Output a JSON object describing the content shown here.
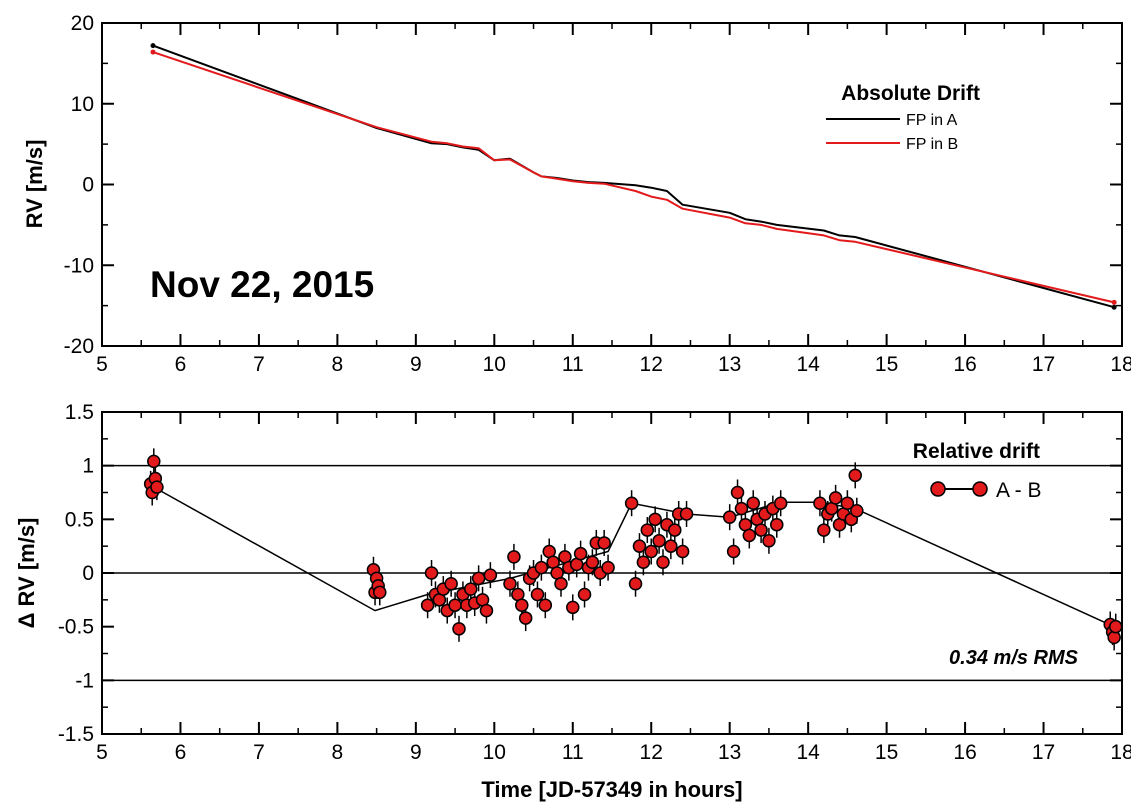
{
  "chart_data": [
    {
      "type": "line",
      "title": "",
      "xlabel": "",
      "ylabel": "RV [m/s]",
      "xlim": [
        5,
        18
      ],
      "ylim": [
        -20,
        20
      ],
      "x_ticks": [
        5,
        6,
        7,
        8,
        9,
        10,
        11,
        12,
        13,
        14,
        15,
        16,
        17,
        18
      ],
      "y_ticks": [
        -20,
        -10,
        0,
        10,
        20
      ],
      "legend_title": "Absolute Drift",
      "legend_position": "top-right",
      "annotation": "Nov 22, 2015",
      "grid": false,
      "series": [
        {
          "name": "FP in A",
          "color": "#000000",
          "x": [
            5.65,
            8.5,
            9.2,
            9.4,
            9.6,
            9.8,
            10.0,
            10.2,
            10.5,
            10.6,
            10.8,
            11.0,
            11.2,
            11.4,
            11.8,
            12.0,
            12.2,
            12.4,
            13.0,
            13.2,
            13.4,
            13.6,
            14.2,
            14.4,
            14.6,
            17.9
          ],
          "y": [
            17.2,
            7.0,
            5.1,
            5.0,
            4.6,
            4.3,
            3.0,
            3.2,
            1.5,
            1.0,
            0.8,
            0.5,
            0.3,
            0.2,
            -0.1,
            -0.4,
            -0.8,
            -2.5,
            -3.5,
            -4.3,
            -4.6,
            -5.0,
            -5.7,
            -6.3,
            -6.5,
            -15.2
          ]
        },
        {
          "name": "FP in B",
          "color": "#e31a1c",
          "x": [
            5.65,
            8.5,
            9.2,
            9.4,
            9.6,
            9.8,
            10.0,
            10.2,
            10.5,
            10.6,
            10.8,
            11.0,
            11.2,
            11.4,
            11.8,
            12.0,
            12.2,
            12.4,
            13.0,
            13.2,
            13.4,
            13.6,
            14.2,
            14.4,
            14.6,
            17.9
          ],
          "y": [
            16.4,
            7.1,
            5.3,
            5.1,
            4.7,
            4.5,
            3.0,
            3.1,
            1.5,
            1.0,
            0.7,
            0.4,
            0.2,
            0.1,
            -0.8,
            -1.5,
            -1.9,
            -3.0,
            -4.1,
            -4.8,
            -5.0,
            -5.5,
            -6.3,
            -6.9,
            -7.1,
            -14.6
          ]
        }
      ]
    },
    {
      "type": "scatter",
      "title": "",
      "xlabel": "Time [JD-57349 in hours]",
      "ylabel": "Δ RV [m/s]",
      "xlim": [
        5,
        18
      ],
      "ylim": [
        -1.5,
        1.5
      ],
      "x_ticks": [
        5,
        6,
        7,
        8,
        9,
        10,
        11,
        12,
        13,
        14,
        15,
        16,
        17,
        18
      ],
      "y_ticks": [
        -1.5,
        -1,
        -0.5,
        0,
        0.5,
        1,
        1.5
      ],
      "y_tick_labels": [
        "-1.5",
        "-1",
        "-0.5",
        "0",
        "0.5",
        "1",
        "1.5"
      ],
      "hlines": [
        -1,
        0,
        1
      ],
      "legend_title": "Relative drift",
      "legend_position": "top-right",
      "annotation": "0.34 m/s RMS",
      "grid": false,
      "series": [
        {
          "name": "A - B",
          "color": "#e31a1c",
          "x": [
            5.62,
            5.64,
            5.66,
            5.68,
            5.7,
            8.46,
            8.48,
            8.5,
            8.52,
            8.54,
            9.15,
            9.2,
            9.25,
            9.3,
            9.35,
            9.4,
            9.45,
            9.5,
            9.55,
            9.6,
            9.65,
            9.7,
            9.75,
            9.8,
            9.85,
            9.9,
            9.95,
            10.2,
            10.25,
            10.3,
            10.35,
            10.4,
            10.45,
            10.5,
            10.55,
            10.6,
            10.65,
            10.7,
            10.75,
            10.8,
            10.85,
            10.9,
            10.95,
            11.0,
            11.05,
            11.1,
            11.15,
            11.2,
            11.25,
            11.3,
            11.35,
            11.4,
            11.45,
            11.75,
            11.8,
            11.85,
            11.9,
            11.95,
            12.0,
            12.05,
            12.1,
            12.15,
            12.2,
            12.25,
            12.3,
            12.35,
            12.4,
            12.45,
            13.0,
            13.05,
            13.1,
            13.15,
            13.2,
            13.25,
            13.3,
            13.35,
            13.4,
            13.45,
            13.5,
            13.55,
            13.6,
            13.65,
            14.15,
            14.2,
            14.25,
            14.3,
            14.35,
            14.4,
            14.45,
            14.5,
            14.55,
            14.6,
            14.62,
            17.85,
            17.88,
            17.9,
            17.92
          ],
          "y": [
            0.83,
            0.75,
            1.04,
            0.88,
            0.8,
            0.03,
            -0.18,
            -0.05,
            -0.12,
            -0.18,
            -0.3,
            0.0,
            -0.2,
            -0.25,
            -0.15,
            -0.35,
            -0.1,
            -0.3,
            -0.52,
            -0.2,
            -0.3,
            -0.15,
            -0.28,
            -0.05,
            -0.25,
            -0.35,
            -0.02,
            -0.1,
            0.15,
            -0.2,
            -0.3,
            -0.42,
            -0.05,
            0.0,
            -0.2,
            0.05,
            -0.3,
            0.2,
            0.1,
            0.0,
            -0.1,
            0.15,
            0.05,
            -0.32,
            0.08,
            0.18,
            -0.2,
            0.05,
            0.1,
            0.28,
            0.0,
            0.28,
            0.05,
            0.65,
            -0.1,
            0.25,
            0.1,
            0.4,
            0.2,
            0.5,
            0.3,
            0.1,
            0.45,
            0.25,
            0.4,
            0.55,
            0.2,
            0.55,
            0.52,
            0.2,
            0.75,
            0.6,
            0.45,
            0.35,
            0.65,
            0.5,
            0.4,
            0.55,
            0.3,
            0.6,
            0.45,
            0.65,
            0.65,
            0.4,
            0.55,
            0.6,
            0.7,
            0.45,
            0.55,
            0.65,
            0.5,
            0.91,
            0.58,
            -0.48,
            -0.55,
            -0.6,
            -0.5
          ],
          "line_x": [
            5.66,
            8.48,
            9.15,
            10.2,
            11.45,
            11.75,
            12.45,
            13.0,
            13.65,
            14.15,
            14.6,
            17.9
          ],
          "line_y": [
            0.8,
            -0.35,
            -0.2,
            -0.05,
            0.2,
            0.65,
            0.55,
            0.52,
            0.66,
            0.66,
            0.6,
            -0.5
          ]
        }
      ]
    }
  ]
}
